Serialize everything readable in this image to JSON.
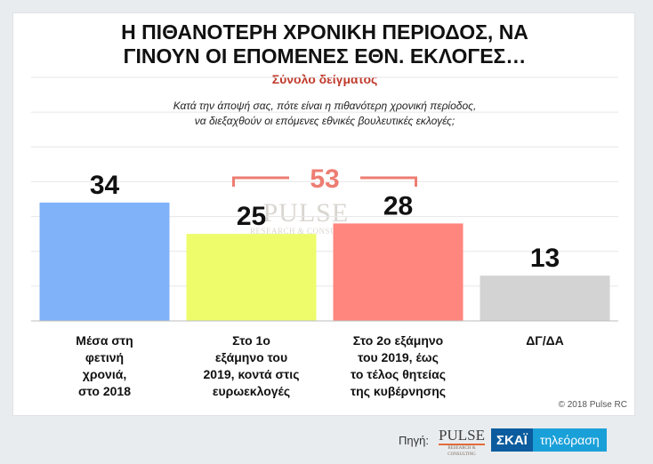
{
  "title_lines": [
    "Η ΠΙΘΑΝΟΤΕΡΗ ΧΡΟΝΙΚΗ ΠΕΡΙΟΔΟΣ, ΝΑ",
    "ΓΙΝΟΥΝ ΟΙ ΕΠΟΜΕΝΕΣ ΕΘΝ. ΕΚΛΟΓΕΣ…"
  ],
  "subtitle": "Σύνολο δείγματος",
  "question_lines": [
    "Κατά την άποψή σας, πότε είναι η πιθανότερη χρονική περίοδος,",
    "να διεξαχθούν οι επόμενες εθνικές βουλευτικές εκλογές;"
  ],
  "watermark": {
    "main": "PULSE",
    "sub": "RESEARCH & CONSULTING"
  },
  "copyright": "© 2018 Pulse RC",
  "source": {
    "label": "Πηγή:",
    "logo_main": "PULSE",
    "logo_sub": "RESEARCH & CONSULTING",
    "channel_brand": "ΣΚΑΪ",
    "channel_text": "τηλεόραση"
  },
  "colors": {
    "sum_bracket": "#ee7d73",
    "gridline": "#e6e6e6"
  },
  "chart_data": {
    "type": "bar",
    "categories": [
      [
        "Μέσα στη",
        "φετινή",
        "χρονιά,",
        "στο 2018"
      ],
      [
        "Στο 1ο",
        "εξάμηνο του",
        "2019, κοντά στις",
        "ευρωεκλογές"
      ],
      [
        "Στο 2ο εξάμηνο",
        "του 2019, έως",
        "το τέλος θητείας",
        "της κυβέρνησης"
      ],
      [
        "ΔΓ/ΔΑ"
      ]
    ],
    "values": [
      34,
      25,
      28,
      13
    ],
    "colors": [
      "#7fb2f9",
      "#eefc6b",
      "#ff867e",
      "#d3d3d3"
    ],
    "ylim": [
      0,
      70
    ],
    "grid": true,
    "annotation": {
      "value": 53,
      "spans_categories": [
        1,
        2
      ]
    }
  }
}
